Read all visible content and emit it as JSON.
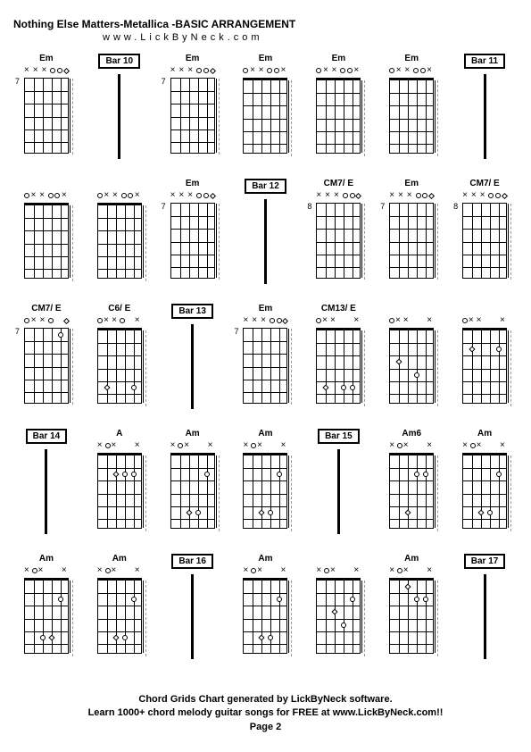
{
  "title": "Nothing Else Matters-Metallica -BASIC ARRANGEMENT",
  "url": "www.LickByNeck.com",
  "footer_line1": "Chord Grids Chart generated by LickByNeck software.",
  "footer_line2": "Learn 1000+ chord melody guitar songs for FREE at www.LickByNeck.com!!",
  "footer_line3": "Page 2",
  "grid_cols": 7,
  "grid_rows": 5,
  "frets_per_diagram": 6,
  "strings": 6,
  "colors": {
    "background": "#ffffff",
    "text": "#000000",
    "lines": "#000000",
    "dashed": "#999999"
  },
  "cells": [
    {
      "type": "chord",
      "label": "Em",
      "fret_pos": "7",
      "markers": [
        "x",
        "x",
        "x",
        "o",
        "o",
        "d"
      ],
      "nut": false,
      "dashed": true,
      "dots": []
    },
    {
      "type": "bar",
      "label": "Bar 10"
    },
    {
      "type": "chord",
      "label": "Em",
      "fret_pos": "7",
      "markers": [
        "x",
        "x",
        "x",
        "o",
        "o",
        "d"
      ],
      "nut": false,
      "dashed": true,
      "dots": []
    },
    {
      "type": "chord",
      "label": "Em",
      "fret_pos": "",
      "markers": [
        "o",
        "x",
        "x",
        "o",
        "o",
        "x"
      ],
      "nut": true,
      "dashed": true,
      "dots": []
    },
    {
      "type": "chord",
      "label": "Em",
      "fret_pos": "",
      "markers": [
        "o",
        "x",
        "x",
        "o",
        "o",
        "x"
      ],
      "nut": true,
      "dashed": true,
      "dots": []
    },
    {
      "type": "chord",
      "label": "Em",
      "fret_pos": "",
      "markers": [
        "o",
        "x",
        "x",
        "o",
        "o",
        "x"
      ],
      "nut": true,
      "dashed": true,
      "dots": []
    },
    {
      "type": "bar",
      "label": "Bar 11"
    },
    {
      "type": "chord",
      "label": "",
      "fret_pos": "",
      "markers": [
        "o",
        "x",
        "x",
        "o",
        "o",
        "x"
      ],
      "nut": true,
      "dashed": true,
      "dots": []
    },
    {
      "type": "chord",
      "label": "",
      "fret_pos": "",
      "markers": [
        "o",
        "x",
        "x",
        "o",
        "o",
        "x"
      ],
      "nut": true,
      "dashed": true,
      "dots": []
    },
    {
      "type": "chord",
      "label": "Em",
      "fret_pos": "7",
      "markers": [
        "x",
        "x",
        "x",
        "o",
        "o",
        "d"
      ],
      "nut": false,
      "dashed": true,
      "dots": []
    },
    {
      "type": "bar",
      "label": "Bar 12"
    },
    {
      "type": "chord",
      "label": "CM7/ E",
      "fret_pos": "8",
      "markers": [
        "x",
        "x",
        "x",
        "o",
        "o",
        "d"
      ],
      "nut": false,
      "dashed": true,
      "dots": []
    },
    {
      "type": "chord",
      "label": "Em",
      "fret_pos": "7",
      "markers": [
        "x",
        "x",
        "x",
        "o",
        "o",
        "d"
      ],
      "nut": false,
      "dashed": true,
      "dots": []
    },
    {
      "type": "chord",
      "label": "CM7/ E",
      "fret_pos": "8",
      "markers": [
        "x",
        "x",
        "x",
        "o",
        "o",
        "d"
      ],
      "nut": false,
      "dashed": true,
      "dots": []
    },
    {
      "type": "chord",
      "label": "CM7/ E",
      "fret_pos": "7",
      "markers": [
        "o",
        "x",
        "x",
        "o",
        "",
        "d"
      ],
      "nut": false,
      "dashed": true,
      "dots": [
        {
          "string": 4,
          "fret": 1,
          "shape": "circle"
        }
      ]
    },
    {
      "type": "chord",
      "label": "C6/ E",
      "fret_pos": "",
      "markers": [
        "o",
        "x",
        "x",
        "o",
        "",
        "x"
      ],
      "nut": true,
      "dashed": true,
      "dots": [
        {
          "string": 1,
          "fret": 5,
          "shape": "diamond"
        },
        {
          "string": 4,
          "fret": 5,
          "shape": "circle"
        }
      ]
    },
    {
      "type": "bar",
      "label": "Bar 13"
    },
    {
      "type": "chord",
      "label": "Em",
      "fret_pos": "7",
      "markers": [
        "x",
        "x",
        "x",
        "o",
        "o",
        "d"
      ],
      "nut": false,
      "dashed": true,
      "dots": []
    },
    {
      "type": "chord",
      "label": "CM13/ E",
      "fret_pos": "",
      "markers": [
        "o",
        "x",
        "x",
        "",
        "",
        "x"
      ],
      "nut": true,
      "dashed": true,
      "dots": [
        {
          "string": 1,
          "fret": 5,
          "shape": "diamond"
        },
        {
          "string": 3,
          "fret": 5,
          "shape": "circle"
        },
        {
          "string": 4,
          "fret": 5,
          "shape": "circle"
        }
      ]
    },
    {
      "type": "chord",
      "label": "",
      "fret_pos": "",
      "markers": [
        "o",
        "x",
        "x",
        "",
        "",
        "x"
      ],
      "nut": true,
      "dashed": true,
      "dots": [
        {
          "string": 1,
          "fret": 3,
          "shape": "diamond"
        },
        {
          "string": 3,
          "fret": 4,
          "shape": "circle"
        }
      ]
    },
    {
      "type": "chord",
      "label": "",
      "fret_pos": "",
      "markers": [
        "o",
        "x",
        "x",
        "",
        "",
        "x"
      ],
      "nut": true,
      "dashed": true,
      "dots": [
        {
          "string": 1,
          "fret": 2,
          "shape": "diamond"
        },
        {
          "string": 4,
          "fret": 2,
          "shape": "circle"
        }
      ]
    },
    {
      "type": "bar",
      "label": "Bar 14"
    },
    {
      "type": "chord",
      "label": "A",
      "fret_pos": "",
      "markers": [
        "x",
        "o",
        "x",
        "",
        "",
        "x"
      ],
      "nut": true,
      "dashed": true,
      "dots": [
        {
          "string": 2,
          "fret": 2,
          "shape": "diamond"
        },
        {
          "string": 3,
          "fret": 2,
          "shape": "circle"
        },
        {
          "string": 4,
          "fret": 2,
          "shape": "circle"
        }
      ]
    },
    {
      "type": "chord",
      "label": "Am",
      "fret_pos": "",
      "markers": [
        "x",
        "o",
        "x",
        "",
        "",
        "x"
      ],
      "nut": true,
      "dashed": true,
      "dots": [
        {
          "string": 4,
          "fret": 2,
          "shape": "circle"
        },
        {
          "string": 2,
          "fret": 5,
          "shape": "diamond"
        },
        {
          "string": 3,
          "fret": 5,
          "shape": "circle"
        }
      ]
    },
    {
      "type": "chord",
      "label": "Am",
      "fret_pos": "",
      "markers": [
        "x",
        "o",
        "x",
        "",
        "",
        "x"
      ],
      "nut": true,
      "dashed": true,
      "dots": [
        {
          "string": 4,
          "fret": 2,
          "shape": "circle"
        },
        {
          "string": 2,
          "fret": 5,
          "shape": "diamond"
        },
        {
          "string": 3,
          "fret": 5,
          "shape": "circle"
        }
      ]
    },
    {
      "type": "bar",
      "label": "Bar 15"
    },
    {
      "type": "chord",
      "label": "Am6",
      "fret_pos": "",
      "markers": [
        "x",
        "o",
        "x",
        "",
        "",
        "x"
      ],
      "nut": true,
      "dashed": true,
      "dots": [
        {
          "string": 4,
          "fret": 2,
          "shape": "circle"
        },
        {
          "string": 3,
          "fret": 2,
          "shape": "circle"
        },
        {
          "string": 2,
          "fret": 5,
          "shape": "diamond"
        }
      ]
    },
    {
      "type": "chord",
      "label": "Am",
      "fret_pos": "",
      "markers": [
        "x",
        "o",
        "x",
        "",
        "",
        "x"
      ],
      "nut": true,
      "dashed": true,
      "dots": [
        {
          "string": 4,
          "fret": 2,
          "shape": "circle"
        },
        {
          "string": 2,
          "fret": 5,
          "shape": "diamond"
        },
        {
          "string": 3,
          "fret": 5,
          "shape": "circle"
        }
      ]
    },
    {
      "type": "chord",
      "label": "Am",
      "fret_pos": "",
      "markers": [
        "x",
        "o",
        "x",
        "",
        "",
        "x"
      ],
      "nut": true,
      "dashed": true,
      "dots": [
        {
          "string": 4,
          "fret": 2,
          "shape": "circle"
        },
        {
          "string": 2,
          "fret": 5,
          "shape": "circle"
        },
        {
          "string": 3,
          "fret": 5,
          "shape": "diamond"
        }
      ]
    },
    {
      "type": "chord",
      "label": "Am",
      "fret_pos": "",
      "markers": [
        "x",
        "o",
        "x",
        "",
        "",
        "x"
      ],
      "nut": true,
      "dashed": true,
      "dots": [
        {
          "string": 4,
          "fret": 2,
          "shape": "circle"
        },
        {
          "string": 2,
          "fret": 5,
          "shape": "diamond"
        },
        {
          "string": 3,
          "fret": 5,
          "shape": "circle"
        }
      ]
    },
    {
      "type": "bar",
      "label": "Bar 16"
    },
    {
      "type": "chord",
      "label": "Am",
      "fret_pos": "",
      "markers": [
        "x",
        "o",
        "x",
        "",
        "",
        "x"
      ],
      "nut": true,
      "dashed": true,
      "dots": [
        {
          "string": 4,
          "fret": 2,
          "shape": "circle"
        },
        {
          "string": 2,
          "fret": 5,
          "shape": "diamond"
        },
        {
          "string": 3,
          "fret": 5,
          "shape": "circle"
        }
      ]
    },
    {
      "type": "chord",
      "label": "",
      "fret_pos": "",
      "markers": [
        "x",
        "o",
        "x",
        "",
        "",
        "x"
      ],
      "nut": true,
      "dashed": true,
      "dots": [
        {
          "string": 4,
          "fret": 2,
          "shape": "circle"
        },
        {
          "string": 3,
          "fret": 4,
          "shape": "circle"
        },
        {
          "string": 2,
          "fret": 3,
          "shape": "diamond"
        }
      ]
    },
    {
      "type": "chord",
      "label": "Am",
      "fret_pos": "",
      "markers": [
        "x",
        "o",
        "x",
        "",
        "",
        "x"
      ],
      "nut": true,
      "dashed": true,
      "dots": [
        {
          "string": 4,
          "fret": 2,
          "shape": "circle"
        },
        {
          "string": 3,
          "fret": 2,
          "shape": "circle"
        },
        {
          "string": 2,
          "fret": 1,
          "shape": "diamond"
        }
      ]
    },
    {
      "type": "bar",
      "label": "Bar 17"
    }
  ]
}
